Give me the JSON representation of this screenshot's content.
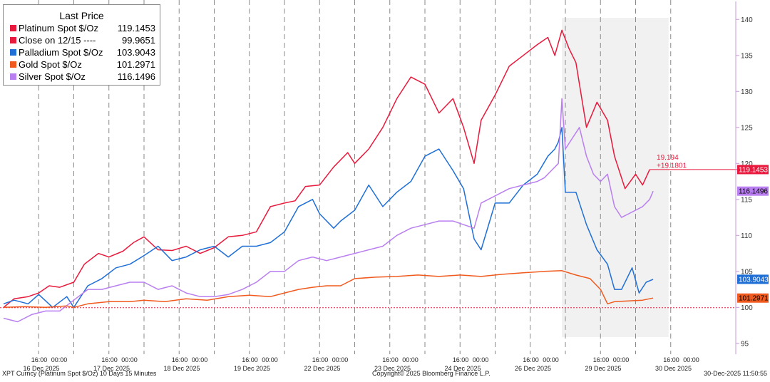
{
  "legend": {
    "title": "Last Price",
    "items": [
      {
        "name": "Platinum Spot $/Oz",
        "value": "119.1453",
        "color": "#e8193c"
      },
      {
        "name": "Close on 12/15 ----",
        "value": "99.9651",
        "color": "#e8193c"
      },
      {
        "name": "Palladium Spot $/Oz",
        "value": "103.9043",
        "color": "#1f6fd6"
      },
      {
        "name": "Gold Spot $/Oz",
        "value": "101.2971",
        "color": "#f05a1e"
      },
      {
        "name": "Silver Spot $/Oz",
        "value": "116.1496",
        "color": "#b97ff0"
      }
    ]
  },
  "footer": {
    "left": "XPT Curncy (Platinum Spot  $/Oz) 10 Days 15 Minutes",
    "center": "Copyright© 2025 Bloomberg Finance L.P.",
    "right": "30-Dec-2025 11:50:55"
  },
  "chart_data": {
    "type": "line",
    "x_axis": {
      "days": [
        "16 Dec 2025",
        "17 Dec 2025",
        "18 Dec 2025",
        "19 Dec 2025",
        "22 Dec 2025",
        "23 Dec 2025",
        "24 Dec 2025",
        "26 Dec 2025",
        "29 Dec 2025",
        "30 Dec 2025"
      ],
      "time_ticks": [
        "16:00",
        "00:00"
      ]
    },
    "y_axis": {
      "ticks": [
        95,
        100,
        105,
        110,
        115,
        120,
        125,
        130,
        135,
        140
      ],
      "ylim": [
        93.5,
        142.5
      ],
      "position": "right"
    },
    "baseline": {
      "label": "Close on 12/15",
      "value": 99.9651,
      "color": "#e8193c"
    },
    "highlight_region": {
      "from": 7.95,
      "to": 9.47,
      "color": "#f1f1f1"
    },
    "annotations": [
      {
        "text": "19.194",
        "x": 9.3,
        "y": 120.5,
        "color": "#e8193c"
      },
      {
        "text": "+19.1801",
        "x": 9.3,
        "y": 119.4,
        "color": "#e8193c"
      }
    ],
    "value_labels": [
      {
        "text": "119.1453",
        "value": 119.1453,
        "color": "#e8193c",
        "text_color": "#ffffff"
      },
      {
        "text": "116.1496",
        "value": 116.1496,
        "color": "#b97ff0",
        "text_color": "#000000"
      },
      {
        "text": "103.9043",
        "value": 103.9043,
        "color": "#1f6fd6",
        "text_color": "#ffffff"
      },
      {
        "text": "101.2971",
        "value": 101.2971,
        "color": "#f05a1e",
        "text_color": "#000000"
      }
    ],
    "series": [
      {
        "name": "Platinum Spot $/Oz",
        "color": "#e8193c",
        "x": [
          0,
          0.15,
          0.35,
          0.5,
          0.65,
          0.8,
          1.0,
          1.15,
          1.35,
          1.5,
          1.7,
          1.85,
          2.0,
          2.2,
          2.4,
          2.6,
          2.8,
          3.0,
          3.2,
          3.4,
          3.6,
          3.8,
          4.0,
          4.15,
          4.3,
          4.5,
          4.7,
          4.9,
          5.0,
          5.2,
          5.4,
          5.6,
          5.8,
          6.0,
          6.2,
          6.4,
          6.55,
          6.7,
          6.8,
          7.0,
          7.2,
          7.4,
          7.6,
          7.75,
          7.85,
          7.95,
          8.05,
          8.15,
          8.3,
          8.45,
          8.6,
          8.7,
          8.85,
          9.0,
          9.1,
          9.2
        ],
        "y": [
          100,
          101.2,
          101.5,
          102,
          103,
          102.8,
          103.5,
          106,
          107.5,
          107,
          107.8,
          109,
          109.8,
          108,
          107.9,
          108.5,
          107.5,
          108.3,
          109.8,
          110,
          110.5,
          114,
          114.5,
          114.8,
          116.8,
          117,
          119.5,
          121.5,
          120,
          122,
          125,
          129,
          132,
          131,
          127,
          129,
          125,
          120,
          126,
          129.5,
          133.5,
          135,
          136.5,
          137.5,
          135,
          138.5,
          136,
          134,
          125,
          128.5,
          126,
          121,
          116.5,
          118.5,
          117,
          119.15
        ]
      },
      {
        "name": "Palladium Spot $/Oz",
        "color": "#1f6fd6",
        "x": [
          0,
          0.15,
          0.35,
          0.5,
          0.7,
          0.9,
          1.0,
          1.2,
          1.4,
          1.6,
          1.8,
          2.0,
          2.2,
          2.4,
          2.6,
          2.8,
          3.0,
          3.2,
          3.4,
          3.6,
          3.8,
          4.0,
          4.2,
          4.4,
          4.5,
          4.7,
          4.8,
          5.0,
          5.2,
          5.4,
          5.6,
          5.8,
          6.0,
          6.2,
          6.4,
          6.55,
          6.7,
          6.8,
          7.0,
          7.2,
          7.4,
          7.6,
          7.75,
          7.85,
          7.9,
          7.95,
          8.0,
          8.15,
          8.3,
          8.45,
          8.6,
          8.7,
          8.8,
          8.95,
          9.05,
          9.15,
          9.25
        ],
        "y": [
          100.5,
          101,
          100.5,
          101.8,
          100,
          101.5,
          100,
          103,
          104,
          105.5,
          106,
          107.2,
          108.5,
          106.5,
          107,
          108,
          108.5,
          107,
          108.5,
          108.5,
          109,
          110.5,
          114,
          115,
          113,
          111,
          112,
          113.5,
          117,
          114,
          116,
          117.5,
          121,
          122,
          119,
          116.5,
          109.5,
          108,
          114.5,
          114.5,
          117,
          118.5,
          121,
          122,
          123,
          125,
          116,
          116,
          111.5,
          108,
          106,
          102.5,
          102.5,
          105.5,
          102,
          103.5,
          103.9
        ]
      },
      {
        "name": "Silver Spot $/Oz",
        "color": "#b97ff0",
        "x": [
          0,
          0.2,
          0.4,
          0.6,
          0.8,
          1.0,
          1.2,
          1.4,
          1.6,
          1.8,
          2.0,
          2.2,
          2.4,
          2.6,
          2.8,
          3.0,
          3.2,
          3.4,
          3.6,
          3.8,
          4.0,
          4.2,
          4.4,
          4.6,
          4.8,
          5.0,
          5.2,
          5.4,
          5.6,
          5.8,
          6.0,
          6.2,
          6.4,
          6.55,
          6.7,
          6.8,
          7.0,
          7.2,
          7.4,
          7.6,
          7.7,
          7.8,
          7.9,
          7.95,
          8.0,
          8.1,
          8.2,
          8.3,
          8.4,
          8.5,
          8.6,
          8.7,
          8.8,
          8.9,
          9.0,
          9.1,
          9.2,
          9.25
        ],
        "y": [
          98.5,
          98,
          99,
          99.5,
          99.5,
          101,
          102.5,
          102.5,
          103,
          103.5,
          103.5,
          102.5,
          103,
          102,
          101.5,
          101.5,
          101.8,
          102.5,
          103.5,
          105,
          105,
          106.5,
          107,
          106.5,
          107,
          107.5,
          108,
          108.5,
          110,
          111,
          111.5,
          112,
          112,
          111.5,
          111,
          114.5,
          115.5,
          116.5,
          117,
          117.5,
          118,
          119,
          120,
          129,
          122,
          123.5,
          125,
          121,
          118.5,
          117.5,
          118.5,
          114,
          112.5,
          113,
          113.5,
          114,
          115,
          116.15
        ]
      },
      {
        "name": "Gold Spot $/Oz",
        "color": "#f05a1e",
        "x": [
          0,
          0.3,
          0.6,
          0.9,
          1.0,
          1.2,
          1.5,
          1.8,
          2.0,
          2.3,
          2.6,
          2.9,
          3.2,
          3.5,
          3.8,
          4.0,
          4.2,
          4.4,
          4.6,
          4.8,
          5.0,
          5.3,
          5.6,
          5.9,
          6.2,
          6.5,
          6.8,
          7.1,
          7.4,
          7.7,
          7.95,
          8.15,
          8.35,
          8.5,
          8.6,
          8.7,
          8.9,
          9.1,
          9.25
        ],
        "y": [
          100,
          100.1,
          100,
          100.2,
          100,
          100.5,
          100.8,
          100.8,
          101,
          100.8,
          101.2,
          101,
          101.5,
          101.7,
          101.5,
          102,
          102.5,
          102.8,
          103,
          103,
          104,
          104.2,
          104.3,
          104.5,
          104.3,
          104.5,
          104.3,
          104.6,
          104.8,
          105,
          105.1,
          104.5,
          104,
          102.5,
          100.5,
          100.8,
          100.9,
          101,
          101.3
        ]
      }
    ]
  }
}
